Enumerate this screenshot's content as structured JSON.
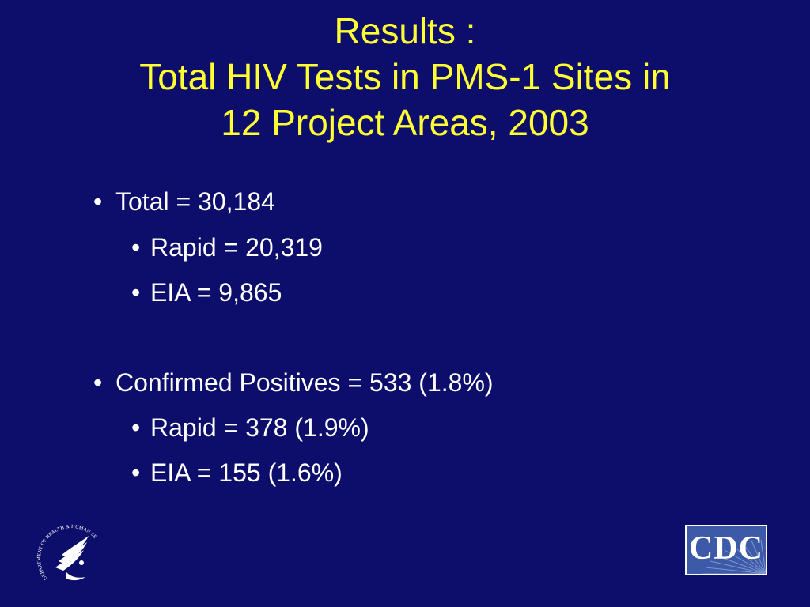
{
  "slide": {
    "title_lines": [
      "Results :",
      "Total HIV Tests in PMS-1 Sites in",
      "12 Project Areas, 2003"
    ],
    "bullets": [
      {
        "level": 1,
        "marker": "•",
        "text": "Total = 30,184"
      },
      {
        "level": 2,
        "marker": "•",
        "text": "Rapid = 20,319"
      },
      {
        "level": 2,
        "marker": "•",
        "text": "EIA = 9,865"
      },
      {
        "level": 1,
        "marker": "•",
        "text": "Confirmed Positives = 533 (1.8%)"
      },
      {
        "level": 2,
        "marker": "•",
        "text": "Rapid = 378 (1.9%)"
      },
      {
        "level": 2,
        "marker": "•",
        "text": "EIA = 155 (1.6%)"
      }
    ],
    "logos": {
      "hhs_seal_text": "DEPARTMENT OF HEALTH & HUMAN SERVICES · USA",
      "cdc_text": "CDC"
    },
    "colors": {
      "background": "#0d0d6b",
      "title": "#ffff33",
      "body_text": "#ffffff",
      "cdc_blue": "#3d5aa8"
    }
  }
}
